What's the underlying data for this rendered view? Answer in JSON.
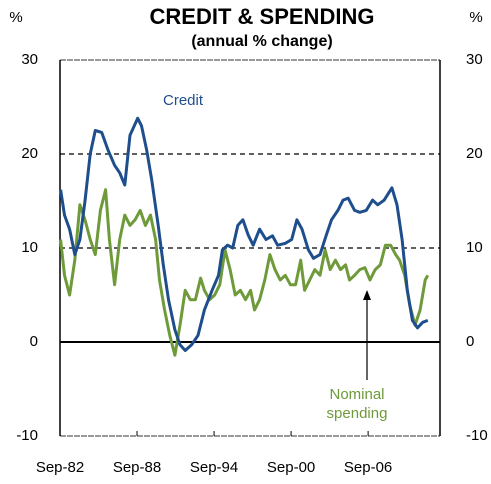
{
  "chart_data": {
    "type": "line",
    "title": "CREDIT & SPENDING",
    "subtitle": "(annual % change)",
    "y_label": "%",
    "y2_label": "%",
    "xlim": [
      1982.75,
      2012.35
    ],
    "xticks": [
      {
        "value": 1982.75,
        "label": "Sep-82"
      },
      {
        "value": 1988.75,
        "label": "Sep-88"
      },
      {
        "value": 1994.75,
        "label": "Sep-94"
      },
      {
        "value": 2000.75,
        "label": "Sep-00"
      },
      {
        "value": 2006.75,
        "label": "Sep-06"
      }
    ],
    "ylim": [
      -10,
      30
    ],
    "yticks": [
      -10,
      0,
      10,
      20,
      30
    ],
    "y2lim": [
      -10,
      30
    ],
    "y2ticks": [
      -10,
      0,
      10,
      20,
      30
    ],
    "grid": true,
    "series": [
      {
        "name": "Credit",
        "color": "#1f4e8c",
        "x": [
          1982.8,
          1983.1,
          1983.5,
          1983.9,
          1984.3,
          1984.7,
          1985.1,
          1985.5,
          1986.0,
          1986.5,
          1987.0,
          1987.4,
          1987.8,
          1988.2,
          1988.8,
          1989.1,
          1989.5,
          1989.9,
          1990.4,
          1990.8,
          1991.2,
          1991.7,
          1992.1,
          1992.5,
          1993.0,
          1993.5,
          1994.0,
          1994.6,
          1995.1,
          1995.4,
          1995.8,
          1996.2,
          1996.6,
          1997.0,
          1997.4,
          1997.8,
          1998.3,
          1998.8,
          1999.3,
          1999.7,
          2000.3,
          2000.8,
          2001.2,
          2001.6,
          2002.1,
          2002.5,
          2003.0,
          2003.5,
          2003.9,
          2004.4,
          2004.8,
          2005.2,
          2005.7,
          2006.1,
          2006.6,
          2007.1,
          2007.5,
          2008.0,
          2008.6,
          2009.0,
          2009.4,
          2009.8,
          2010.2,
          2010.6,
          2011.0,
          2011.4
        ],
        "values": [
          16.2,
          13.5,
          12,
          9.3,
          10.9,
          15,
          20,
          22.5,
          22.3,
          20.4,
          18.8,
          18,
          16.7,
          22,
          23.8,
          23,
          20.4,
          17.2,
          12.4,
          8.2,
          4.5,
          1.3,
          -0.3,
          -0.9,
          -0.3,
          0.7,
          3.4,
          5.5,
          7.1,
          9.8,
          10.3,
          10,
          12.4,
          13,
          11.4,
          10.3,
          12,
          10.9,
          11.3,
          10.3,
          10.5,
          10.9,
          13,
          12,
          9.8,
          8.9,
          9.3,
          11.4,
          13,
          14,
          15.1,
          15.3,
          14,
          13.8,
          14,
          15.1,
          14.6,
          15.1,
          16.4,
          14.6,
          10.9,
          5.5,
          2.3,
          1.5,
          2.1,
          2.3
        ]
      },
      {
        "name": "Nominal spending",
        "color": "#6f9a3a",
        "x": [
          1982.8,
          1983.1,
          1983.5,
          1983.9,
          1984.3,
          1984.7,
          1985.1,
          1985.5,
          1985.9,
          1986.3,
          1986.6,
          1987.0,
          1987.4,
          1987.8,
          1988.2,
          1988.6,
          1989.0,
          1989.4,
          1989.8,
          1990.2,
          1990.5,
          1990.9,
          1991.3,
          1991.7,
          1992.1,
          1992.5,
          1992.9,
          1993.3,
          1993.7,
          1994.0,
          1994.4,
          1994.8,
          1995.2,
          1995.6,
          1996.0,
          1996.4,
          1996.8,
          1997.2,
          1997.6,
          1997.9,
          1998.3,
          1998.7,
          1999.1,
          1999.5,
          1999.9,
          2000.3,
          2000.7,
          2001.1,
          2001.5,
          2001.8,
          2002.2,
          2002.6,
          2003.0,
          2003.4,
          2003.8,
          2004.2,
          2004.6,
          2005.0,
          2005.3,
          2005.7,
          2006.1,
          2006.5,
          2006.9,
          2007.3,
          2007.7,
          2008.1,
          2008.5,
          2008.9,
          2009.2,
          2009.6,
          2010.0,
          2010.4,
          2010.8,
          2011.2,
          2011.4
        ],
        "values": [
          10.9,
          7.1,
          5,
          8.7,
          14.6,
          13,
          10.9,
          9.3,
          14,
          16.2,
          10.9,
          6.1,
          10.9,
          13.5,
          12.4,
          13,
          14,
          12.4,
          13.5,
          10.9,
          6.6,
          3.4,
          0.7,
          -1.4,
          1.8,
          5.5,
          4.5,
          4.5,
          6.8,
          5.5,
          4.5,
          5,
          6.1,
          9.8,
          7.7,
          5,
          5.5,
          4.5,
          5.5,
          3.4,
          4.5,
          6.6,
          9.3,
          7.7,
          6.6,
          7.1,
          6.1,
          6.1,
          8.7,
          5.5,
          6.6,
          7.7,
          7.1,
          9.8,
          7.7,
          8.7,
          7.7,
          8.2,
          6.6,
          7.1,
          7.7,
          7.9,
          6.6,
          7.7,
          8.2,
          10.3,
          10.3,
          9.3,
          8.7,
          7.1,
          3.9,
          1.8,
          3.4,
          6.6,
          7.1
        ]
      }
    ],
    "annotations": {
      "credit": "Credit",
      "spending": [
        "Nominal",
        "spending"
      ]
    }
  }
}
